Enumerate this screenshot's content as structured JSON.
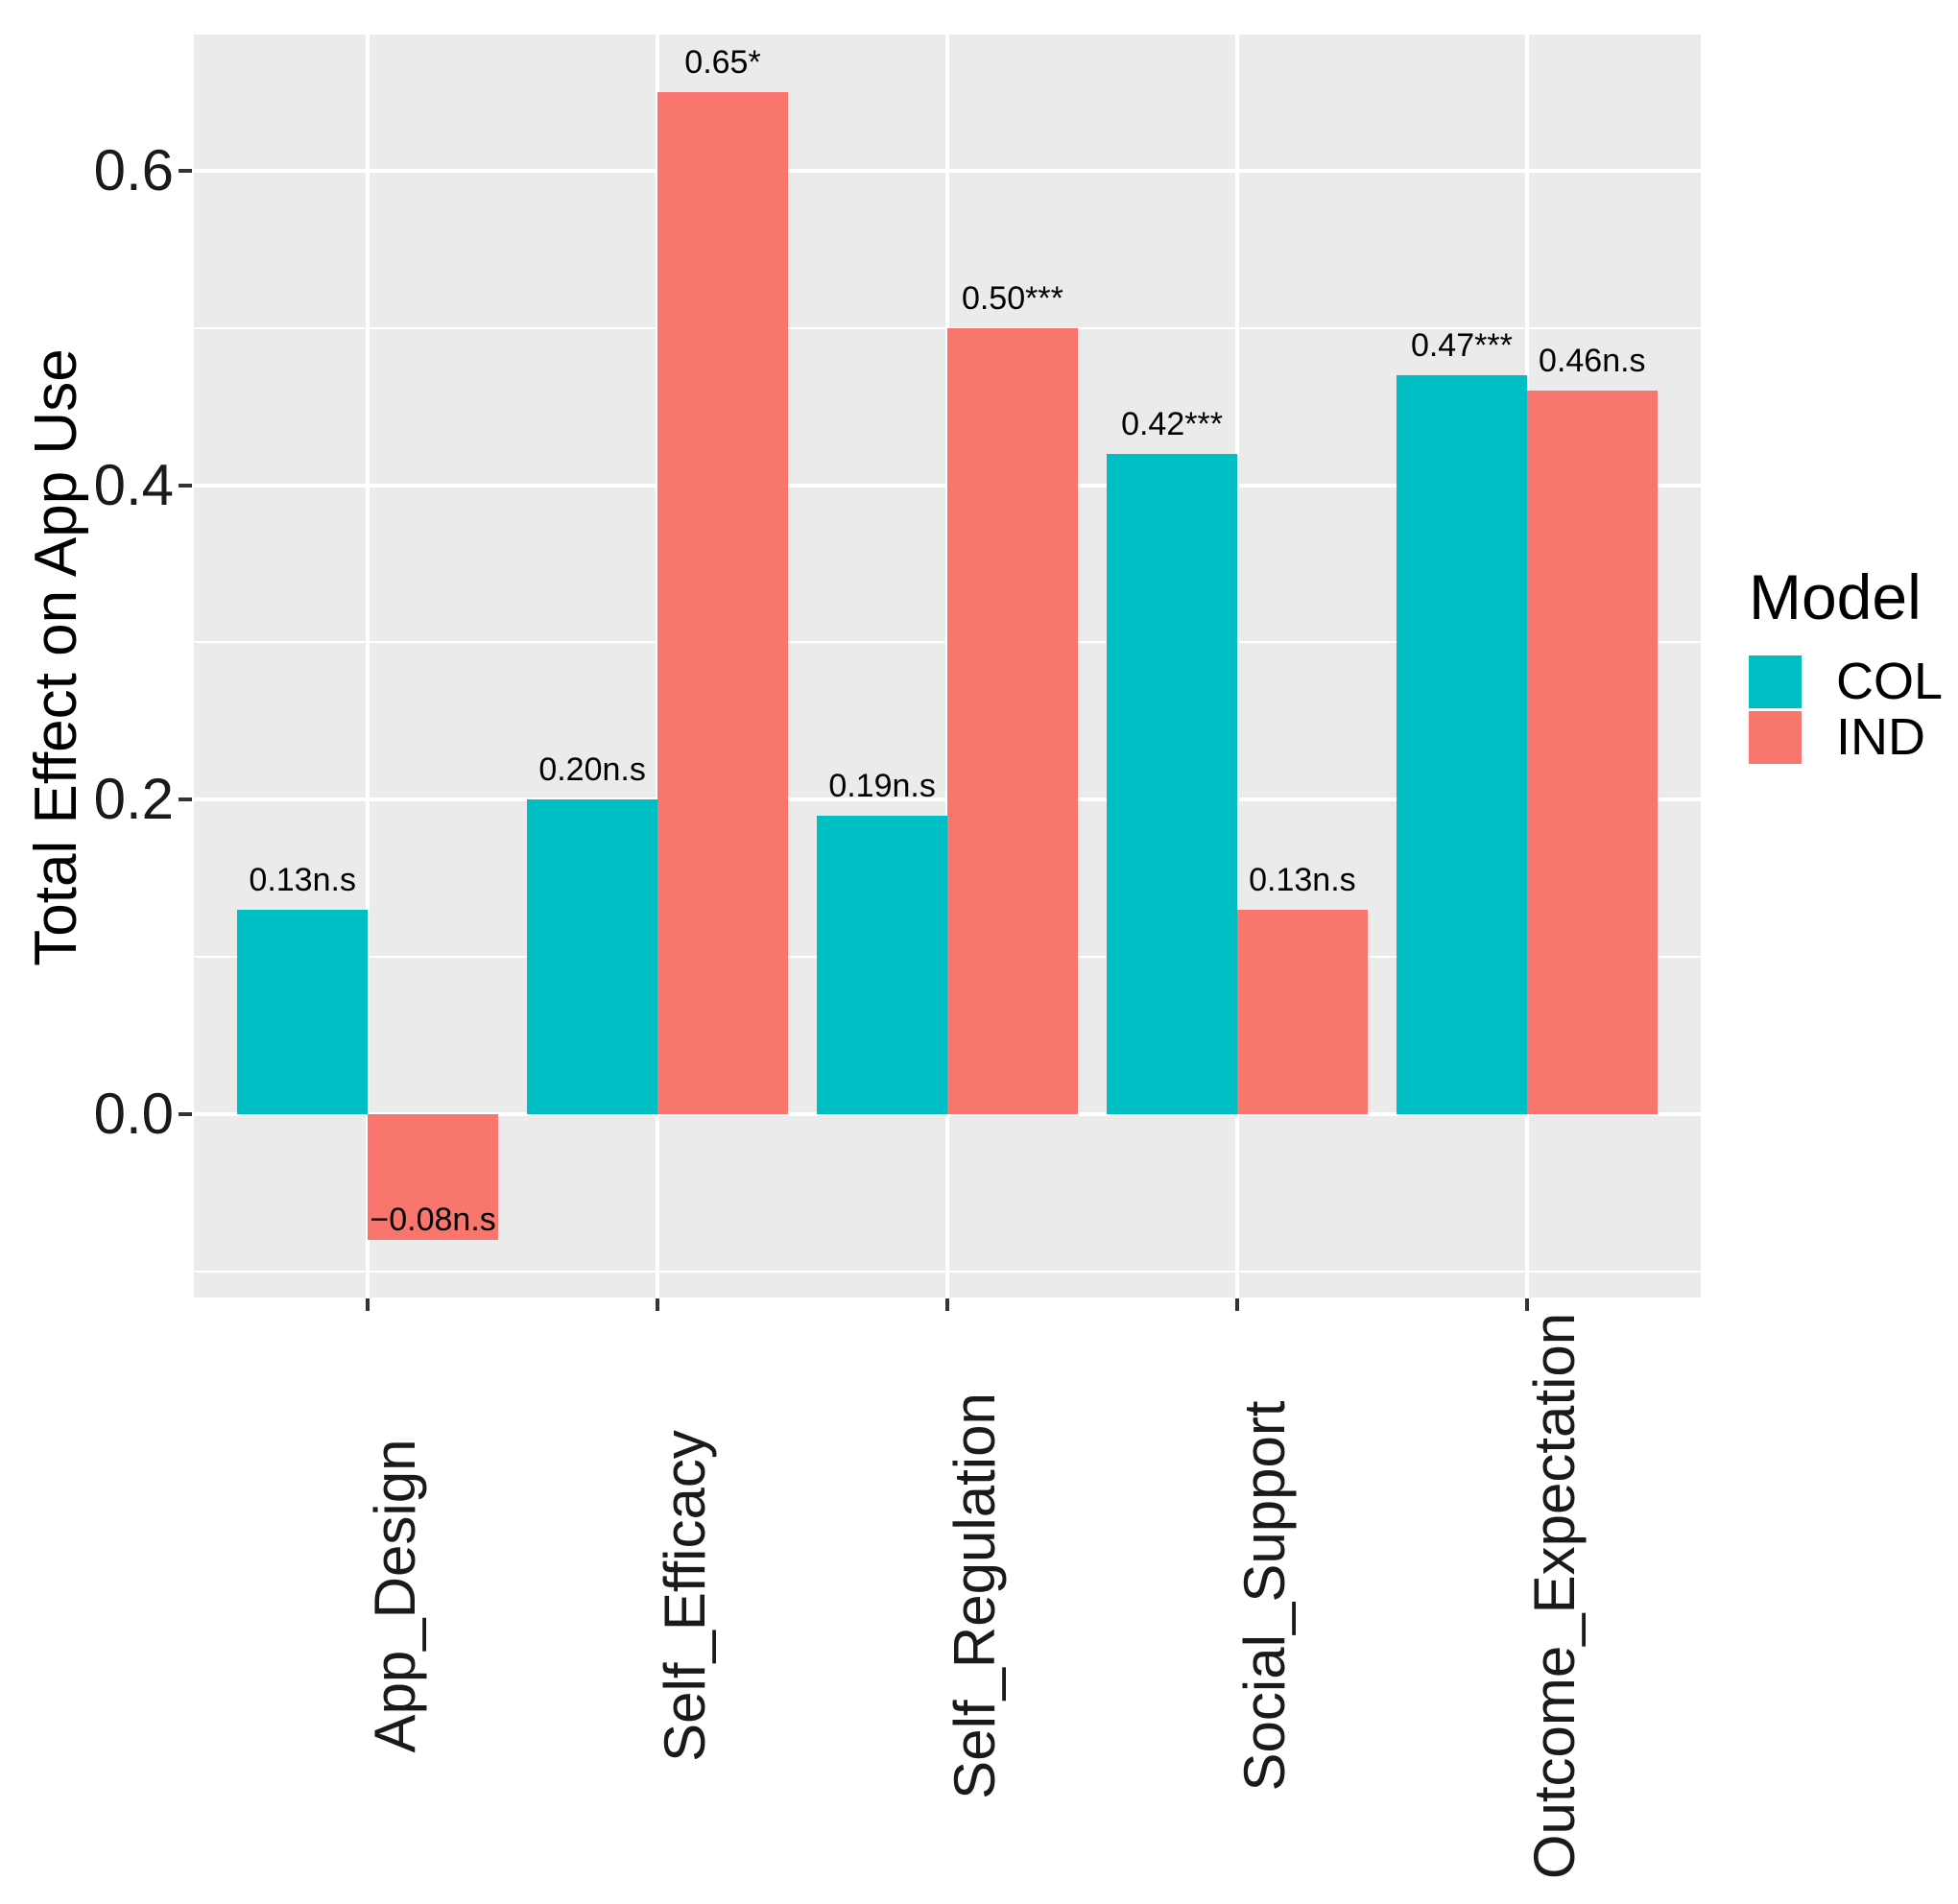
{
  "chart_data": {
    "type": "bar",
    "title": "",
    "xlabel": "",
    "ylabel": "Total Effect on App Use",
    "categories": [
      "App_Design",
      "Self_Efficacy",
      "Self_Regulation",
      "Social_Support",
      "Outcome_Expectation"
    ],
    "series": [
      {
        "name": "COL",
        "color": "#00BFC4",
        "values": [
          0.13,
          0.2,
          0.19,
          0.42,
          0.47
        ],
        "labels": [
          "0.13n.s",
          "0.20n.s",
          "0.19n.s",
          "0.42***",
          "0.47***"
        ]
      },
      {
        "name": "IND",
        "color": "#F8766D",
        "values": [
          -0.08,
          0.65,
          0.5,
          0.13,
          0.46
        ],
        "labels": [
          "−0.08n.s",
          "0.65*",
          "0.50***",
          "0.13n.s",
          "0.46n.s"
        ]
      }
    ],
    "y_ticks": {
      "labels": [
        "0.0",
        "0.2",
        "0.4",
        "0.6"
      ],
      "major": [
        0.0,
        0.2,
        0.4,
        0.6
      ],
      "minor": [
        -0.1,
        0.1,
        0.3,
        0.5
      ]
    },
    "ylim": [
      -0.1165,
      0.6865
    ],
    "bar_group_width": 0.9,
    "grid": true,
    "panel_bg": "#EBEBEB",
    "grid_color": "#FFFFFF",
    "axis_text_color": "#1A1A1A",
    "legend": {
      "title": "Model",
      "position": "right",
      "entries": [
        {
          "label": "COL",
          "color": "#00BFC4"
        },
        {
          "label": "IND",
          "color": "#F8766D"
        }
      ]
    }
  }
}
